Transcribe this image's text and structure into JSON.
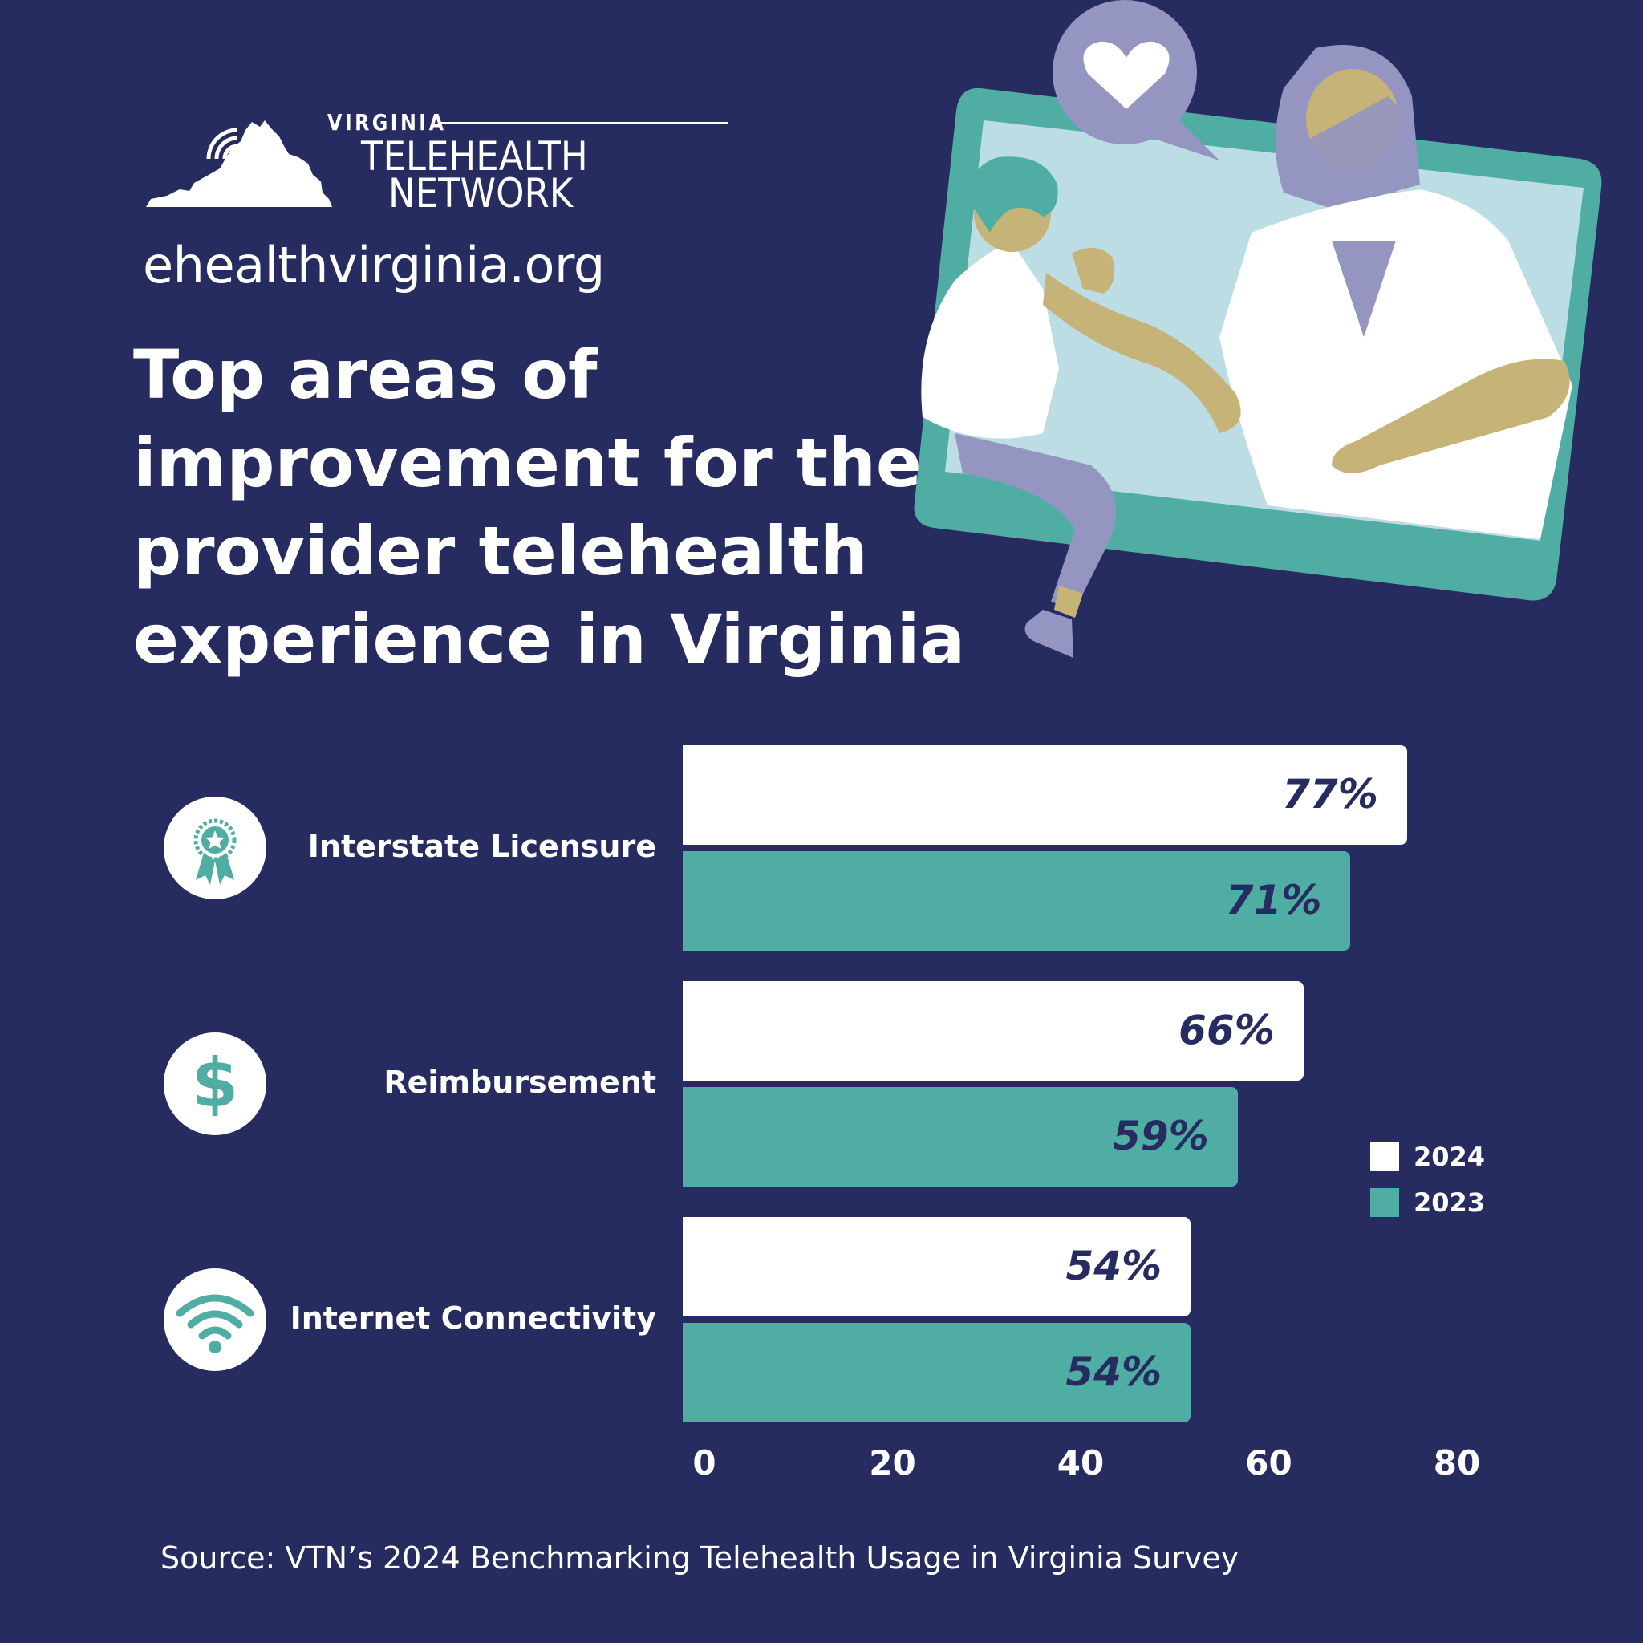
{
  "logo": {
    "line1": "VIRGINIA",
    "line2": "TELEHEALTH",
    "line3": "NETWORK"
  },
  "website": "ehealthvirginia.org",
  "title_lines": [
    "Top areas of",
    "improvement for the",
    "provider telehealth",
    "experience in Virginia"
  ],
  "source": "Source: VTN’s 2024 Benchmarking Telehealth Usage in Virginia Survey",
  "colors": {
    "background": "#262b60",
    "series_2024": "#ffffff",
    "series_2023": "#4fada3",
    "label_text": "#262b60"
  },
  "chart_data": {
    "type": "bar",
    "orientation": "horizontal",
    "title": "Top areas of improvement for the provider telehealth experience in Virginia",
    "categories": [
      "Interstate Licensure",
      "Reimbursement",
      "Internet Connectivity"
    ],
    "category_icons": [
      "award-ribbon-icon",
      "dollar-icon",
      "wifi-icon"
    ],
    "series": [
      {
        "name": "2024",
        "values": [
          77,
          66,
          54
        ],
        "labels": [
          "77%",
          "66%",
          "54%"
        ],
        "color": "#ffffff"
      },
      {
        "name": "2023",
        "values": [
          71,
          59,
          54
        ],
        "labels": [
          "71%",
          "59%",
          "54%"
        ],
        "color": "#4fada3"
      }
    ],
    "xlim": [
      0,
      80
    ],
    "xticks": [
      "0",
      "20",
      "40",
      "60",
      "80"
    ],
    "grid": false,
    "legend_position": "right"
  }
}
